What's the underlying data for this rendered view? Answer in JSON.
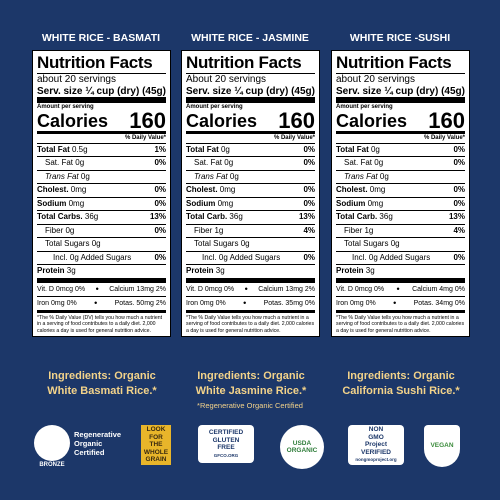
{
  "panels": [
    {
      "title": "WHITE RICE - BASMATI",
      "facts": {
        "heading": "Nutrition Facts",
        "servings": "about 20 servings",
        "serving_label": "Serv. size",
        "serving_value": "¼ cup (dry) (45g)",
        "amount_per_serving": "Amount per serving",
        "calories_label": "Calories",
        "calories_value": "160",
        "dv_header": "% Daily Value*",
        "rows": [
          {
            "name": "Total Fat",
            "amount": "0.5g",
            "dv": "1%",
            "style": "main"
          },
          {
            "name": "Sat. Fat",
            "amount": "0g",
            "dv": "0%",
            "style": "sub"
          },
          {
            "name": "Trans Fat",
            "amount": "0g",
            "dv": "",
            "style": "sub-italic"
          },
          {
            "name": "Cholest.",
            "amount": "0mg",
            "dv": "0%",
            "style": "main"
          },
          {
            "name": "Sodium",
            "amount": "0mg",
            "dv": "0%",
            "style": "main"
          },
          {
            "name": "Total Carbs.",
            "amount": "36g",
            "dv": "13%",
            "style": "main"
          },
          {
            "name": "Fiber",
            "amount": "0g",
            "dv": "0%",
            "style": "sub"
          },
          {
            "name": "Total Sugars",
            "amount": "0g",
            "dv": "",
            "style": "sub"
          },
          {
            "name": "Incl. 0g Added Sugars",
            "amount": "",
            "dv": "0%",
            "style": "subsub"
          },
          {
            "name": "Protein",
            "amount": "3g",
            "dv": "",
            "style": "main"
          }
        ],
        "vitamins": [
          [
            "Vit. D 0mcg 0%",
            "Calcium 13mg 2%"
          ],
          [
            "Iron 0mg 0%",
            "Potas. 50mg 2%"
          ]
        ],
        "footnote": "*The % Daily Value (DV) tells you how much a nutrient in a serving of food contributes to a daily diet. 2,000 calories a day is used for general nutrition advice."
      },
      "ingredients": [
        "Ingredients: Organic",
        "White Basmati Rice.*"
      ]
    },
    {
      "title": "WHITE RICE - JASMINE",
      "facts": {
        "heading": "Nutrition Facts",
        "servings": "About 20 servings",
        "serving_label": "Serv. size",
        "serving_value": "¼ cup (dry) (45g)",
        "amount_per_serving": "Amount per serving",
        "calories_label": "Calories",
        "calories_value": "160",
        "dv_header": "% Daily Value*",
        "rows": [
          {
            "name": "Total Fat",
            "amount": "0g",
            "dv": "0%",
            "style": "main"
          },
          {
            "name": "Sat. Fat",
            "amount": "0g",
            "dv": "0%",
            "style": "sub"
          },
          {
            "name": "Trans Fat",
            "amount": "0g",
            "dv": "",
            "style": "sub-italic"
          },
          {
            "name": "Cholest.",
            "amount": "0mg",
            "dv": "0%",
            "style": "main"
          },
          {
            "name": "Sodium",
            "amount": "0mg",
            "dv": "0%",
            "style": "main"
          },
          {
            "name": "Total Carb.",
            "amount": "36g",
            "dv": "13%",
            "style": "main"
          },
          {
            "name": "Fiber",
            "amount": "1g",
            "dv": "4%",
            "style": "sub"
          },
          {
            "name": "Total Sugars",
            "amount": "0g",
            "dv": "",
            "style": "sub"
          },
          {
            "name": "Incl. 0g Added Sugars",
            "amount": "",
            "dv": "0%",
            "style": "subsub"
          },
          {
            "name": "Protein",
            "amount": "3g",
            "dv": "",
            "style": "main"
          }
        ],
        "vitamins": [
          [
            "Vit. D 0mcg 0%",
            "Calcium 13mg 2%"
          ],
          [
            "Iron 0mg 0%",
            "Potas. 35mg 0%"
          ]
        ],
        "footnote": "*The % Daily Value tells you how much a nutrient in a serving of food contributes to a daily diet. 2,000 calories a day is used for general nutrition advice."
      },
      "ingredients": [
        "Ingredients: Organic",
        "White Jasmine Rice.*"
      ]
    },
    {
      "title": "WHITE RICE -SUSHI",
      "facts": {
        "heading": "Nutrition Facts",
        "servings": "about 20 servings",
        "serving_label": "Serv. size",
        "serving_value": "¼ cup (dry) (45g)",
        "amount_per_serving": "Amount per serving",
        "calories_label": "Calories",
        "calories_value": "160",
        "dv_header": "% Daily Value*",
        "rows": [
          {
            "name": "Total Fat",
            "amount": "0g",
            "dv": "0%",
            "style": "main"
          },
          {
            "name": "Sat. Fat",
            "amount": "0g",
            "dv": "0%",
            "style": "sub"
          },
          {
            "name": "Trans Fat",
            "amount": "0g",
            "dv": "",
            "style": "sub-italic"
          },
          {
            "name": "Cholest.",
            "amount": "0mg",
            "dv": "0%",
            "style": "main"
          },
          {
            "name": "Sodium",
            "amount": "0mg",
            "dv": "0%",
            "style": "main"
          },
          {
            "name": "Total Carb.",
            "amount": "36g",
            "dv": "13%",
            "style": "main"
          },
          {
            "name": "Fiber",
            "amount": "1g",
            "dv": "4%",
            "style": "sub"
          },
          {
            "name": "Total Sugars",
            "amount": "0g",
            "dv": "",
            "style": "sub"
          },
          {
            "name": "Incl. 0g Added Sugars",
            "amount": "",
            "dv": "0%",
            "style": "subsub"
          },
          {
            "name": "Protein",
            "amount": "3g",
            "dv": "",
            "style": "main"
          }
        ],
        "vitamins": [
          [
            "Vit. D 0mcg 0%",
            "Calcium 4mg 0%"
          ],
          [
            "Iron 0mg 0%",
            "Potas. 34mg 0%"
          ]
        ],
        "footnote": "*The % Daily Value tells you how much a nutrient in a serving of food contributes to a daily diet. 2,000 calories a day is used for general nutrition advice."
      },
      "ingredients": [
        "Ingredients: Organic",
        "California Sushi Rice.*"
      ]
    }
  ],
  "certification_note": "*Regenerative Organic Certified",
  "logos": [
    {
      "lines": [
        "Regenerative",
        "Organic",
        "Certified"
      ],
      "badge": "BRONZE"
    },
    {
      "lines": [
        "LOOK FOR",
        "THE",
        "WHOLE",
        "GRAIN"
      ]
    },
    {
      "lines": [
        "CERTIFIED",
        "GLUTEN",
        "FREE"
      ],
      "badge": "GFCO.ORG"
    },
    {
      "lines": [
        "USDA",
        "ORGANIC"
      ]
    },
    {
      "lines": [
        "NON",
        "GMO",
        "Project",
        "VERIFIED"
      ],
      "badge": "nongmoproject.org"
    },
    {
      "lines": [
        "VEGAN"
      ]
    }
  ]
}
